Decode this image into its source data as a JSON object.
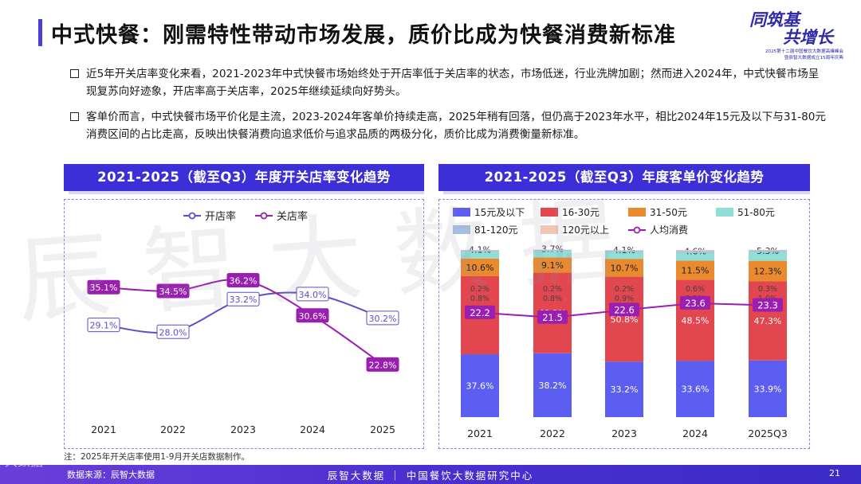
{
  "title": "中式快餐：刚需特性带动市场发展，质价比成为快餐消费新标准",
  "logo": {
    "line1": "同筑基",
    "line2": "共增长",
    "sub1": "2025第十二届中国餐饮大数据高峰峰会",
    "sub2": "暨辰智大数据成立15周年庆典"
  },
  "bullets": [
    "近5年开关店率变化来看，2021-2023年中式快餐市场始终处于开店率低于关店率的状态，市场低迷，行业洗牌加剧；然而进入2024年，中式快餐市场呈现复苏向好迹象，开店率高于关店率，2025年继续延续向好势头。",
    "客单价而言，中式快餐市场平价化是主流，2023-2024年客单价持续走高，2025年稍有回落，但仍高于2023年水平，相比2024年15元及以下与31-80元消费区间的占比走高，反映出快餐消费向追求低价与追求品质的两极分化，质价比成为消费衡量新标准。"
  ],
  "watermark": "辰智大数据",
  "note": "注：2025年开关店率使用1-9月开关店数据制作。",
  "footer": {
    "source": "数据来源：辰智大数据",
    "center": "辰智大数据 ｜ 中国餐饮大数据研究中心",
    "page": "21",
    "corner": "大数据"
  },
  "colors": {
    "accent": "#3d2fd8",
    "open": "#5a4fc8",
    "close": "#9a1fb0"
  },
  "chart_data": [
    {
      "type": "line",
      "title": "2021-2025（截至Q3）年度开关店率变化趋势",
      "categories": [
        "2021",
        "2022",
        "2023",
        "2024",
        "2025"
      ],
      "series": [
        {
          "name": "开店率",
          "values": [
            29.1,
            28.0,
            33.2,
            34.0,
            30.2
          ],
          "labels": [
            "29.1%",
            "28.0%",
            "33.2%",
            "34.0%",
            "30.2%"
          ]
        },
        {
          "name": "关店率",
          "values": [
            35.1,
            34.5,
            36.2,
            30.6,
            22.8
          ],
          "labels": [
            "35.1%",
            "34.5%",
            "36.2%",
            "30.6%",
            "22.8%"
          ]
        }
      ],
      "ylim": [
        20,
        40
      ],
      "legend": "top-center"
    },
    {
      "type": "bar",
      "stacked": true,
      "title": "2021-2025（截至Q3）年度客单价变化趋势",
      "categories": [
        "2021",
        "2022",
        "2023",
        "2024",
        "2025Q3"
      ],
      "series": [
        {
          "name": "15元及以下",
          "values": [
            37.6,
            38.2,
            33.2,
            33.6,
            33.9
          ],
          "color": "#5b5ef0"
        },
        {
          "name": "16-30元",
          "values": [
            46.7,
            48.2,
            50.8,
            48.5,
            47.3
          ],
          "color": "#e2464e"
        },
        {
          "name": "31-50元",
          "values": [
            10.6,
            9.1,
            10.7,
            11.5,
            12.3
          ],
          "color": "#ea8a2e"
        },
        {
          "name": "51-80元",
          "values": [
            4.1,
            3.7,
            4.1,
            4.6,
            5.3
          ],
          "color": "#8fdfd6"
        },
        {
          "name": "81-120元",
          "values": [
            0.8,
            0.8,
            0.9,
            1.2,
            1.0
          ],
          "color": "#a9bfe2"
        },
        {
          "name": "120元以上",
          "values": [
            0.2,
            0.2,
            0.2,
            0.6,
            0.3
          ],
          "color": "#f0c6b4"
        }
      ],
      "avg": {
        "name": "人均消费",
        "values": [
          22.2,
          21.5,
          22.6,
          23.6,
          23.3
        ],
        "color": "#9a1fb0"
      },
      "legend": "top"
    }
  ]
}
